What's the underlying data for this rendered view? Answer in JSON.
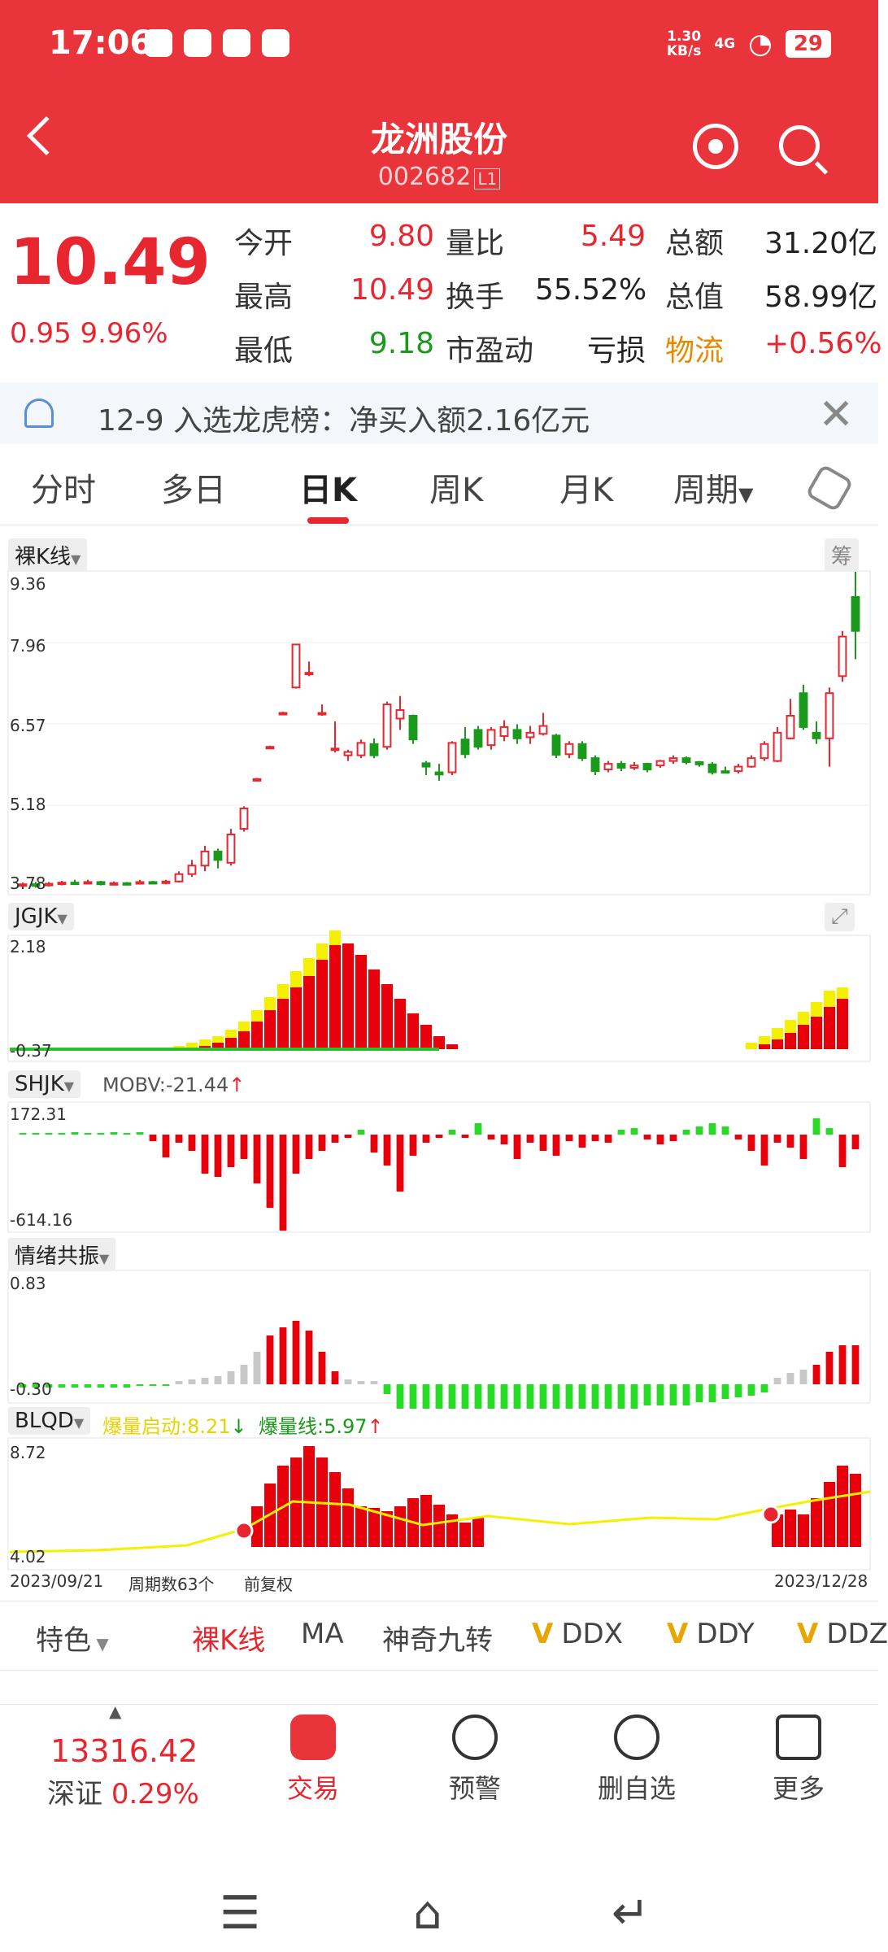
{
  "status": {
    "time": "17:06",
    "net_speed": "1.30",
    "net_unit": "KB/s",
    "signal": "4G",
    "battery": "29"
  },
  "header": {
    "title": "龙洲股份",
    "code": "002682",
    "code_badge": "L1"
  },
  "quote": {
    "price": "10.49",
    "change": "0.95 9.96%",
    "rows": [
      [
        {
          "label": "今开",
          "value": "9.80",
          "color": "red"
        },
        {
          "label": "量比",
          "value": "5.49",
          "color": "red"
        },
        {
          "label": "总额",
          "value": "31.20亿",
          "color": "black"
        }
      ],
      [
        {
          "label": "最高",
          "value": "10.49",
          "color": "red"
        },
        {
          "label": "换手",
          "value": "55.52%",
          "color": "black"
        },
        {
          "label": "总值",
          "value": "58.99亿",
          "color": "black"
        }
      ],
      [
        {
          "label": "最低",
          "value": "9.18",
          "color": "green"
        },
        {
          "label": "市盈动",
          "value": "亏损",
          "color": "black"
        },
        {
          "label": "物流",
          "value": "+0.56%",
          "color": "red"
        }
      ]
    ]
  },
  "notice": {
    "text": "12-9 入选龙虎榜：净买入额2.16亿元"
  },
  "tabs": [
    "分时",
    "多日",
    "日K",
    "周K",
    "月K",
    "周期"
  ],
  "active_tab": "日K",
  "chart_data": [
    {
      "type": "candlestick",
      "label": "裸K线",
      "chip": "筹",
      "y_ticks": [
        "9.36",
        "7.96",
        "6.57",
        "5.18",
        "3.78"
      ],
      "ylim": [
        3.78,
        9.36
      ]
    },
    {
      "type": "bar",
      "label": "JGJK",
      "y_ticks": [
        "2.18",
        "-0.37"
      ],
      "ylim": [
        -0.37,
        2.18
      ]
    },
    {
      "type": "bar",
      "label": "SHJK",
      "indicator_text": "MOBV:-21.44",
      "y_ticks": [
        "172.31",
        "-614.16"
      ],
      "ylim": [
        -614.16,
        172.31
      ]
    },
    {
      "type": "bar",
      "label": "情绪共振",
      "y_ticks": [
        "0.83",
        "-0.30"
      ],
      "ylim": [
        -0.3,
        0.83
      ]
    },
    {
      "type": "bar",
      "label": "BLQD",
      "indicator_text": "爆量启动:8.21",
      "indicator_text2": "爆量线:5.97",
      "y_ticks": [
        "8.72",
        "4.02"
      ],
      "ylim": [
        4.02,
        8.72
      ]
    }
  ],
  "chart_footer": {
    "start": "2023/09/21",
    "period": "周期数63个",
    "adjust": "前复权",
    "end": "2023/12/28"
  },
  "indicators": [
    "特色",
    "裸K线",
    "MA",
    "神奇九转",
    "DDX",
    "DDY",
    "DDZ"
  ],
  "bottom": {
    "index_value": "13316.42",
    "index_name": "深证",
    "index_change": "0.29%",
    "nav": [
      "交易",
      "预警",
      "删自选",
      "更多"
    ]
  }
}
